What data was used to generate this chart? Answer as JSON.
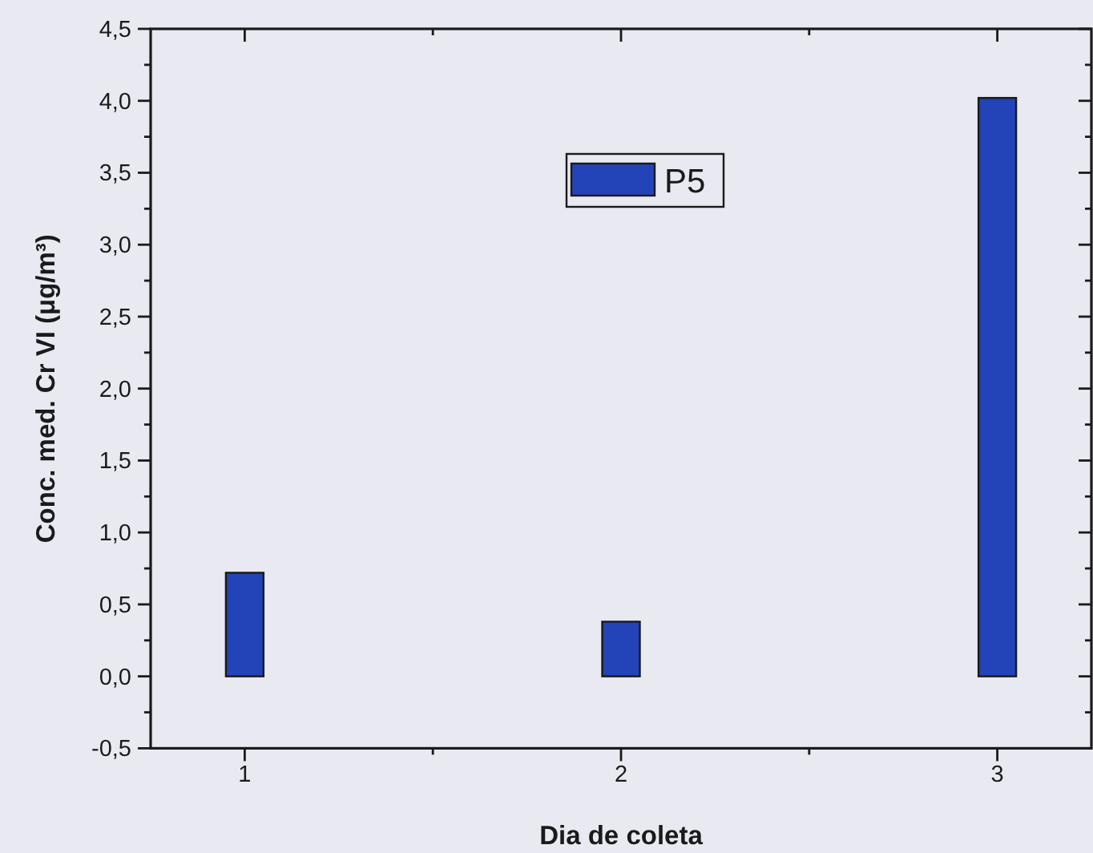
{
  "chart_data": {
    "type": "bar",
    "xlabel": "Dia de coleta",
    "ylabel": "Conc. med. Cr VI (μg/m³)",
    "x": [
      1,
      2,
      3
    ],
    "series": [
      {
        "name": "P5",
        "color": "#2343b8",
        "values": [
          0.72,
          0.38,
          4.02
        ]
      }
    ],
    "xlim": [
      0.75,
      3.25
    ],
    "xticks": [
      1,
      {
        "value": 1.5,
        "label": null
      },
      2,
      {
        "value": 2.5,
        "label": null
      },
      3
    ],
    "ylim": [
      -0.5,
      4.5
    ],
    "yticks": [
      {
        "value": -0.5,
        "label": "-0,5"
      },
      {
        "value": -0.25,
        "label": null
      },
      {
        "value": 0,
        "label": "0,0"
      },
      {
        "value": 0.25,
        "label": null
      },
      {
        "value": 0.5,
        "label": "0,5"
      },
      {
        "value": 0.75,
        "label": null
      },
      {
        "value": 1,
        "label": "1,0"
      },
      {
        "value": 1.25,
        "label": null
      },
      {
        "value": 1.5,
        "label": "1,5"
      },
      {
        "value": 1.75,
        "label": null
      },
      {
        "value": 2,
        "label": "2,0"
      },
      {
        "value": 2.25,
        "label": null
      },
      {
        "value": 2.5,
        "label": "2,5"
      },
      {
        "value": 2.75,
        "label": null
      },
      {
        "value": 3,
        "label": "3,0"
      },
      {
        "value": 3.25,
        "label": null
      },
      {
        "value": 3.5,
        "label": "3,5"
      },
      {
        "value": 3.75,
        "label": null
      },
      {
        "value": 4,
        "label": "4,0"
      },
      {
        "value": 4.25,
        "label": null
      },
      {
        "value": 4.5,
        "label": "4,5"
      }
    ],
    "legend": "top",
    "grid": false
  }
}
